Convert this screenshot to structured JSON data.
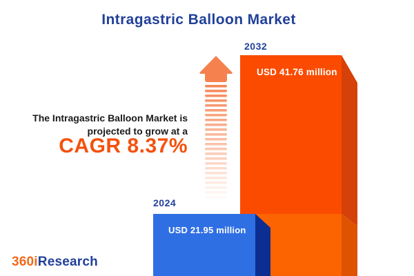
{
  "title": "Intragastric Balloon Market",
  "annotation": {
    "line1": "The Intragastric Balloon Market is",
    "line2": "projected to grow at a",
    "cagr": "CAGR 8.37%"
  },
  "logo": {
    "part1": "360i",
    "part2": "Research"
  },
  "colors": {
    "title_navy": "#21409A",
    "accent_orange": "#F4510D",
    "bar_2024_front": "#2F6FE4",
    "bar_2024_side": "#0C2E92",
    "bar_2032_front": "#FB4B00",
    "bar_2032_front_lower": "#FB6400",
    "bar_2032_side": "#D64109",
    "bar_2032_side_lower": "#DE5300",
    "arrow_orange": "#F5814E",
    "value_text": "#FFFFFF"
  },
  "chart_data": {
    "type": "bar",
    "title": "Intragastric Balloon Market",
    "categories": [
      "2024",
      "2032"
    ],
    "values": [
      21.95,
      41.76
    ],
    "unit": "USD million",
    "value_labels": [
      "USD 21.95 million",
      "USD 41.76 million"
    ],
    "cagr_percent": 8.37,
    "series_colors": [
      "#2F6FE4",
      "#FB4B00"
    ],
    "annotation": "The Intragastric Balloon Market is projected to grow at a CAGR 8.37%",
    "legend": false,
    "axes_visible": false,
    "style": "3d-infographic-bars-with-growth-arrow"
  }
}
